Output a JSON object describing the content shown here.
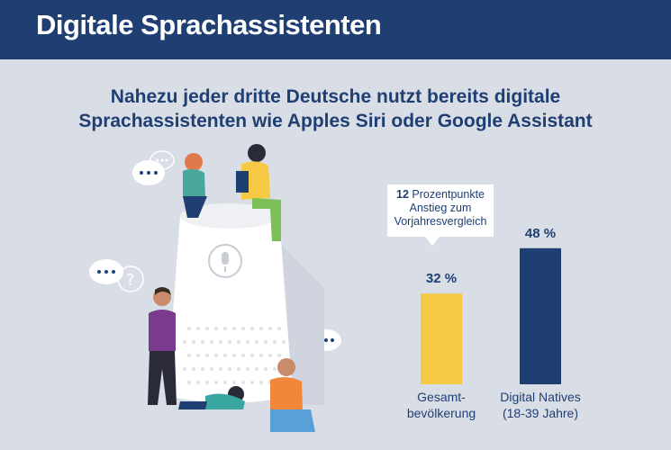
{
  "header": {
    "title": "Digitale Sprachassistenten"
  },
  "subtitle": {
    "line1": "Nahezu jeder dritte Deutsche nutzt bereits digitale",
    "line2": "Sprachassistenten wie Apples Siri oder Google Assistant"
  },
  "callout": {
    "number": "12",
    "line1_rest": "Prozentpunkte",
    "line2": "Anstieg zum",
    "line3": "Vorjahresvergleich"
  },
  "colors": {
    "header": "#1f3f73",
    "background": "#d9dde6",
    "bar_general": "#f6c944",
    "bar_natives": "#1f3f73"
  },
  "chart_data": {
    "type": "bar",
    "categories": [
      "Gesamtbevölkerung",
      "Digital Natives (18-39 Jahre)"
    ],
    "category_lines": [
      [
        "Gesamt-",
        "bevölkerung"
      ],
      [
        "Digital Natives",
        "(18-39 Jahre)"
      ]
    ],
    "values": [
      32,
      48
    ],
    "value_labels": [
      "32 %",
      "48 %"
    ],
    "bar_colors": [
      "#f6c944",
      "#1f3f73"
    ],
    "ylim": [
      0,
      50
    ],
    "grid": false,
    "annotations": [
      "12 Prozentpunkte Anstieg zum Vorjahresvergleich"
    ]
  }
}
